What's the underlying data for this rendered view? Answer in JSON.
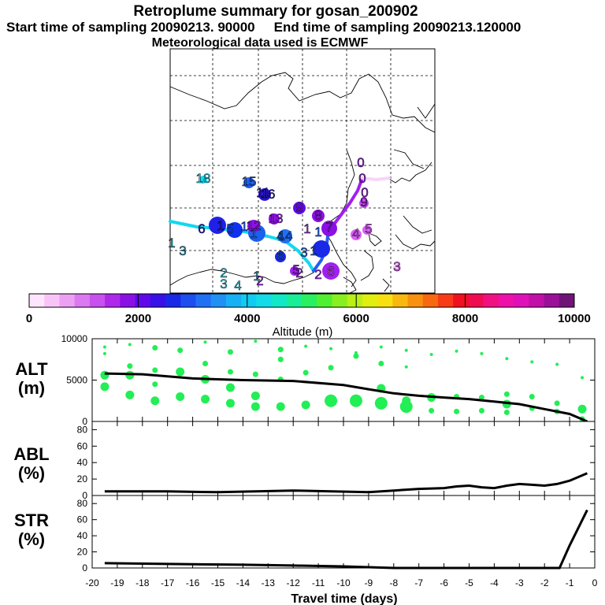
{
  "header": {
    "title": "Retroplume summary for gosan_200902",
    "start_label": "Start time of sampling 20090213. 90000",
    "end_label": "End time of sampling 20090213.120000",
    "met_label": "Meteorological data used is ECMWF"
  },
  "colors": {
    "track_cyan": "#12d8f0",
    "track_blue": "#2060f0",
    "track_purple": "#a020f0",
    "track_lilac": "#d860f8",
    "circle_green": "#22ee55",
    "line_black": "#000000"
  },
  "chart_data": [
    {
      "type": "map",
      "name": "retroplume map",
      "track_labels": [
        {
          "t": "0",
          "color": "#a020f0"
        },
        {
          "t": "0",
          "color": "#a020f0"
        },
        {
          "t": "0",
          "color": "#a020f0"
        },
        {
          "t": "1",
          "color": "#2060f0"
        },
        {
          "t": "1",
          "color": "#2060f0"
        },
        {
          "t": "1",
          "color": "#2060f0"
        },
        {
          "t": "1",
          "color": "#2020c8"
        },
        {
          "t": "1",
          "color": "#1a7af0"
        },
        {
          "t": "1",
          "color": "#a020f0"
        },
        {
          "t": "1",
          "color": "#20a0c0"
        },
        {
          "t": "1",
          "color": "#20a0c0"
        },
        {
          "t": "11",
          "color": "#2020c8"
        },
        {
          "t": "12",
          "color": "#a020f0"
        },
        {
          "t": "13",
          "color": "#a020f0"
        },
        {
          "t": "14",
          "color": "#2060f0"
        },
        {
          "t": "15",
          "color": "#2060f0"
        },
        {
          "t": "16",
          "color": "#2020c8"
        },
        {
          "t": "18",
          "color": "#12d8f0"
        },
        {
          "t": "2",
          "color": "#a020f0"
        },
        {
          "t": "2",
          "color": "#a020f0"
        },
        {
          "t": "2",
          "color": "#12d8f0"
        },
        {
          "t": "2",
          "color": "#a020f0"
        },
        {
          "t": "3",
          "color": "#2060f0"
        },
        {
          "t": "3",
          "color": "#12d8f0"
        },
        {
          "t": "3",
          "color": "#d860f8"
        },
        {
          "t": "3",
          "color": "#20a0c0"
        },
        {
          "t": "4",
          "color": "#2060f0"
        },
        {
          "t": "4",
          "color": "#d860f8"
        },
        {
          "t": "4",
          "color": "#12d8f0"
        },
        {
          "t": "5",
          "color": "#2060f0"
        },
        {
          "t": "5",
          "color": "#d860f8"
        },
        {
          "t": "5",
          "color": "#a020f0"
        },
        {
          "t": "6",
          "color": "#2020c8"
        },
        {
          "t": "6",
          "color": "#2060f0"
        },
        {
          "t": "6",
          "color": "#d860f8"
        },
        {
          "t": "7",
          "color": "#a020f0"
        },
        {
          "t": "8",
          "color": "#a020f0"
        },
        {
          "t": "9",
          "color": "#a020f0"
        },
        {
          "t": "9",
          "color": "#a020f0"
        }
      ]
    },
    {
      "type": "colorbar",
      "xlabel": "Altitude (m)",
      "range": [
        0,
        10000
      ],
      "ticks": [
        0,
        2000,
        4000,
        6000,
        8000,
        10000
      ],
      "tick_labels": [
        "0",
        "2000",
        "4000",
        "6000",
        "8000",
        "10000"
      ],
      "colors": [
        "#fde6fd",
        "#f8c4f8",
        "#eca0f4",
        "#dc78f0",
        "#c850ee",
        "#ae28ec",
        "#8a10e4",
        "#6008ec",
        "#3810e8",
        "#1a28e8",
        "#1c4ef0",
        "#2070f4",
        "#2090f4",
        "#18b0f4",
        "#10ccf0",
        "#12dce8",
        "#10e8c8",
        "#18ee98",
        "#28f060",
        "#50f030",
        "#88f020",
        "#b8f018",
        "#e0ee10",
        "#f8e010",
        "#f8b810",
        "#f89010",
        "#f86810",
        "#f83a18",
        "#f01020",
        "#f00c50",
        "#f01080",
        "#ee10a8",
        "#e010b8",
        "#c010a8",
        "#9a1098",
        "#701478"
      ]
    },
    {
      "type": "scatter+line",
      "ylabel_line1": "ALT",
      "ylabel_line2": "(m)",
      "ylim": [
        0,
        10000
      ],
      "yticks": [
        0,
        5000,
        10000
      ],
      "ytick_labels": [
        "0",
        "5000",
        "10000"
      ],
      "line": {
        "x": [
          -19.5,
          -18,
          -16,
          -14,
          -12,
          -10,
          -9,
          -8,
          -7,
          -6,
          -5,
          -4,
          -3,
          -2,
          -1,
          -0.3
        ],
        "y": [
          5800,
          5700,
          5200,
          5000,
          4900,
          4400,
          3900,
          3400,
          3100,
          2900,
          2700,
          2400,
          2100,
          1500,
          900,
          0
        ]
      },
      "circles": [
        {
          "x": -19.5,
          "y": 9000,
          "s": 1
        },
        {
          "x": -19.5,
          "y": 8200,
          "s": 1
        },
        {
          "x": -19.5,
          "y": 5600,
          "s": 3
        },
        {
          "x": -19.5,
          "y": 4200,
          "s": 3
        },
        {
          "x": -18.5,
          "y": 9300,
          "s": 1
        },
        {
          "x": -18.5,
          "y": 6700,
          "s": 2
        },
        {
          "x": -18.5,
          "y": 5600,
          "s": 3
        },
        {
          "x": -18.5,
          "y": 3200,
          "s": 3
        },
        {
          "x": -17.5,
          "y": 8900,
          "s": 2
        },
        {
          "x": -17.5,
          "y": 6200,
          "s": 2
        },
        {
          "x": -17.5,
          "y": 4500,
          "s": 2
        },
        {
          "x": -17.5,
          "y": 2500,
          "s": 3
        },
        {
          "x": -16.5,
          "y": 8600,
          "s": 2
        },
        {
          "x": -16.5,
          "y": 6000,
          "s": 3
        },
        {
          "x": -16.5,
          "y": 3000,
          "s": 3
        },
        {
          "x": -15.5,
          "y": 9600,
          "s": 1
        },
        {
          "x": -15.5,
          "y": 7000,
          "s": 2
        },
        {
          "x": -15.5,
          "y": 5100,
          "s": 3
        },
        {
          "x": -15.5,
          "y": 2700,
          "s": 3
        },
        {
          "x": -14.5,
          "y": 8400,
          "s": 2
        },
        {
          "x": -14.5,
          "y": 6000,
          "s": 2
        },
        {
          "x": -14.5,
          "y": 4100,
          "s": 3
        },
        {
          "x": -14.5,
          "y": 2200,
          "s": 3
        },
        {
          "x": -13.5,
          "y": 9700,
          "s": 1
        },
        {
          "x": -13.5,
          "y": 5700,
          "s": 2
        },
        {
          "x": -13.5,
          "y": 3100,
          "s": 3
        },
        {
          "x": -13.5,
          "y": 1800,
          "s": 3
        },
        {
          "x": -12.5,
          "y": 8700,
          "s": 2
        },
        {
          "x": -12.5,
          "y": 7500,
          "s": 2
        },
        {
          "x": -12.5,
          "y": 5100,
          "s": 2
        },
        {
          "x": -12.5,
          "y": 1800,
          "s": 3
        },
        {
          "x": -11.5,
          "y": 9100,
          "s": 1
        },
        {
          "x": -11.5,
          "y": 5900,
          "s": 2
        },
        {
          "x": -11.5,
          "y": 2000,
          "s": 3
        },
        {
          "x": -10.5,
          "y": 8800,
          "s": 1
        },
        {
          "x": -10.5,
          "y": 6500,
          "s": 2
        },
        {
          "x": -10.5,
          "y": 2500,
          "s": 4
        },
        {
          "x": -9.5,
          "y": 8300,
          "s": 1
        },
        {
          "x": -9.5,
          "y": 7900,
          "s": 2
        },
        {
          "x": -9.5,
          "y": 2500,
          "s": 4
        },
        {
          "x": -8.5,
          "y": 9000,
          "s": 1
        },
        {
          "x": -8.5,
          "y": 7000,
          "s": 2
        },
        {
          "x": -8.5,
          "y": 4000,
          "s": 3
        },
        {
          "x": -8.5,
          "y": 2200,
          "s": 4
        },
        {
          "x": -7.5,
          "y": 8600,
          "s": 1
        },
        {
          "x": -7.5,
          "y": 6600,
          "s": 1
        },
        {
          "x": -7.5,
          "y": 2500,
          "s": 3
        },
        {
          "x": -7.5,
          "y": 1800,
          "s": 4
        },
        {
          "x": -6.5,
          "y": 8100,
          "s": 1
        },
        {
          "x": -6.5,
          "y": 2900,
          "s": 3
        },
        {
          "x": -6.5,
          "y": 1300,
          "s": 2
        },
        {
          "x": -5.5,
          "y": 8500,
          "s": 1
        },
        {
          "x": -5.5,
          "y": 3000,
          "s": 2
        },
        {
          "x": -5.5,
          "y": 1200,
          "s": 2
        },
        {
          "x": -4.5,
          "y": 8200,
          "s": 1
        },
        {
          "x": -4.5,
          "y": 2900,
          "s": 2
        },
        {
          "x": -4.5,
          "y": 1300,
          "s": 2
        },
        {
          "x": -3.5,
          "y": 7600,
          "s": 1
        },
        {
          "x": -3.5,
          "y": 3300,
          "s": 2
        },
        {
          "x": -3.5,
          "y": 2100,
          "s": 3
        },
        {
          "x": -3.5,
          "y": 1100,
          "s": 2
        },
        {
          "x": -2.5,
          "y": 7200,
          "s": 1
        },
        {
          "x": -2.5,
          "y": 3000,
          "s": 2
        },
        {
          "x": -2.5,
          "y": 1600,
          "s": 2
        },
        {
          "x": -1.5,
          "y": 6900,
          "s": 1
        },
        {
          "x": -1.5,
          "y": 2200,
          "s": 2
        },
        {
          "x": -1.5,
          "y": 1200,
          "s": 2
        },
        {
          "x": -0.5,
          "y": 5300,
          "s": 1
        },
        {
          "x": -0.5,
          "y": 1500,
          "s": 3
        },
        {
          "x": -0.5,
          "y": 300,
          "s": 2
        }
      ]
    },
    {
      "type": "line",
      "ylabel_line1": "ABL",
      "ylabel_line2": "(%)",
      "ylim": [
        0,
        90
      ],
      "yticks": [
        0,
        20,
        40,
        60,
        80
      ],
      "ytick_labels": [
        "0",
        "20",
        "40",
        "60",
        "80"
      ],
      "x": [
        -19.5,
        -17,
        -15,
        -12,
        -9,
        -8,
        -7,
        -6,
        -5.5,
        -5,
        -4.5,
        -4,
        -3.5,
        -3,
        -2.5,
        -2,
        -1.5,
        -1,
        -0.3
      ],
      "y": [
        5,
        5,
        4,
        6,
        4,
        6,
        8,
        9,
        11,
        12,
        10,
        9,
        12,
        14,
        13,
        12,
        14,
        18,
        27
      ]
    },
    {
      "type": "line",
      "ylabel_line1": "STR",
      "ylabel_line2": "(%)",
      "ylim": [
        0,
        90
      ],
      "yticks": [
        0,
        20,
        40,
        60,
        80
      ],
      "ytick_labels": [
        "0",
        "20",
        "40",
        "60",
        "80"
      ],
      "x": [
        -19.5,
        -17,
        -14,
        -12,
        -10,
        -9,
        -8,
        -5,
        -2,
        -1.4,
        -1,
        -0.3
      ],
      "y": [
        6,
        5,
        4,
        3,
        2,
        1,
        0,
        0,
        0,
        0,
        28,
        72
      ],
      "xlabel": "Travel time (days)",
      "xlim": [
        -20,
        0
      ],
      "xticks": [
        -20,
        -19,
        -18,
        -17,
        -16,
        -15,
        -14,
        -13,
        -12,
        -11,
        -10,
        -9,
        -8,
        -7,
        -6,
        -5,
        -4,
        -3,
        -2,
        -1,
        0
      ],
      "xtick_labels": [
        "-20",
        "-19",
        "-18",
        "-17",
        "-16",
        "-15",
        "-14",
        "-13",
        "-12",
        "-11",
        "-10",
        "-9",
        "-8",
        "-7",
        "-6",
        "-5",
        "-4",
        "-3",
        "-2",
        "-1",
        "0"
      ]
    }
  ]
}
